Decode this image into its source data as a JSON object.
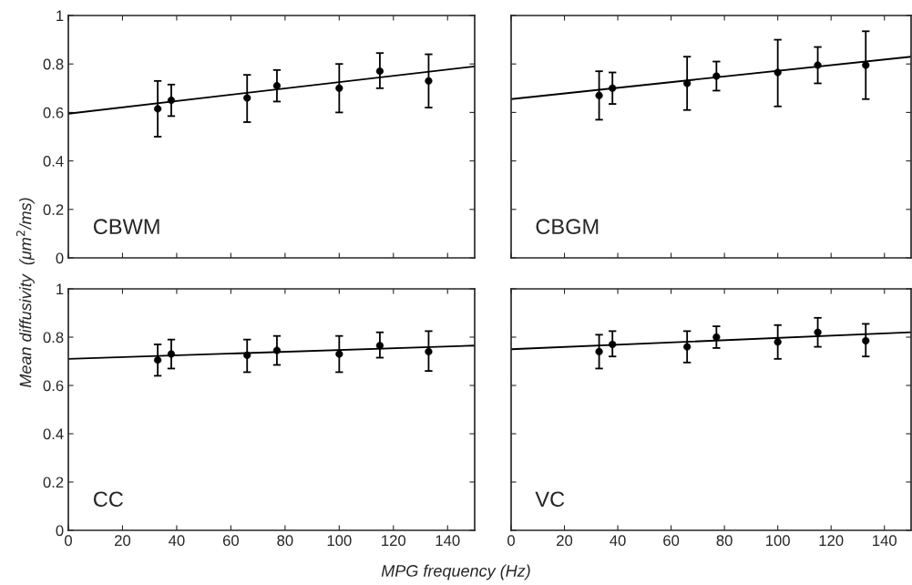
{
  "chart_data": [
    {
      "type": "scatter",
      "xlim": [
        0,
        150
      ],
      "xticks": [
        0,
        20,
        40,
        60,
        80,
        100,
        120,
        140
      ],
      "ylim": [
        0,
        1
      ],
      "yticks": [
        0,
        0.2,
        0.4,
        0.6,
        0.8,
        1
      ],
      "tick_labels": "y",
      "ylabel": "Mean diffusivity  (μm$^{2}$/ms)",
      "annotations": [
        "CBWM"
      ],
      "series": [
        {
          "x": [
            33,
            38,
            66,
            77,
            100,
            115,
            133
          ],
          "values": [
            0.615,
            0.65,
            0.66,
            0.71,
            0.7,
            0.77,
            0.73
          ],
          "errors": [
            [
              0.5,
              0.73
            ],
            [
              0.585,
              0.715
            ],
            [
              0.56,
              0.755
            ],
            [
              0.645,
              0.775
            ],
            [
              0.6,
              0.8
            ],
            [
              0.7,
              0.845
            ],
            [
              0.62,
              0.84
            ]
          ],
          "color": "#000000",
          "marker": "circle"
        },
        {
          "type": "line",
          "x": [
            0,
            150
          ],
          "values": [
            0.595,
            0.79
          ],
          "color": "#000000"
        }
      ]
    },
    {
      "type": "scatter",
      "xlim": [
        0,
        150
      ],
      "xticks": [
        0,
        20,
        40,
        60,
        80,
        100,
        120,
        140
      ],
      "ylim": [
        0,
        1
      ],
      "yticks": [
        0,
        0.2,
        0.4,
        0.6,
        0.8,
        1
      ],
      "tick_labels": false,
      "annotations": [
        "CBGM"
      ],
      "series": [
        {
          "x": [
            33,
            38,
            66,
            77,
            100,
            115,
            133
          ],
          "values": [
            0.67,
            0.7,
            0.72,
            0.75,
            0.765,
            0.795,
            0.795
          ],
          "errors": [
            [
              0.57,
              0.77
            ],
            [
              0.635,
              0.765
            ],
            [
              0.61,
              0.83
            ],
            [
              0.69,
              0.81
            ],
            [
              0.625,
              0.9
            ],
            [
              0.72,
              0.87
            ],
            [
              0.655,
              0.935
            ]
          ],
          "color": "#000000",
          "marker": "circle"
        },
        {
          "type": "line",
          "x": [
            0,
            150
          ],
          "values": [
            0.655,
            0.83
          ],
          "color": "#000000"
        }
      ]
    },
    {
      "type": "scatter",
      "xlim": [
        0,
        150
      ],
      "xticks": [
        0,
        20,
        40,
        60,
        80,
        100,
        120,
        140
      ],
      "ylim": [
        0,
        1
      ],
      "yticks": [
        0,
        0.2,
        0.4,
        0.6,
        0.8,
        1
      ],
      "xlabel": "MPG frequency (Hz)",
      "annotations": [
        "CC"
      ],
      "series": [
        {
          "x": [
            33,
            38,
            66,
            77,
            100,
            115,
            133
          ],
          "values": [
            0.705,
            0.73,
            0.725,
            0.745,
            0.73,
            0.765,
            0.74
          ],
          "errors": [
            [
              0.64,
              0.77
            ],
            [
              0.67,
              0.79
            ],
            [
              0.655,
              0.79
            ],
            [
              0.685,
              0.805
            ],
            [
              0.655,
              0.805
            ],
            [
              0.715,
              0.82
            ],
            [
              0.66,
              0.825
            ]
          ],
          "color": "#000000",
          "marker": "circle"
        },
        {
          "type": "line",
          "x": [
            0,
            150
          ],
          "values": [
            0.71,
            0.765
          ],
          "color": "#000000"
        }
      ]
    },
    {
      "type": "scatter",
      "xlim": [
        0,
        150
      ],
      "xticks": [
        0,
        20,
        40,
        60,
        80,
        100,
        120,
        140
      ],
      "ylim": [
        0,
        1
      ],
      "yticks": [
        0,
        0.2,
        0.4,
        0.6,
        0.8,
        1
      ],
      "tick_labels": "x",
      "annotations": [
        "VC"
      ],
      "series": [
        {
          "x": [
            33,
            38,
            66,
            77,
            100,
            115,
            133
          ],
          "values": [
            0.74,
            0.77,
            0.76,
            0.8,
            0.78,
            0.82,
            0.785
          ],
          "errors": [
            [
              0.67,
              0.81
            ],
            [
              0.72,
              0.825
            ],
            [
              0.695,
              0.825
            ],
            [
              0.755,
              0.845
            ],
            [
              0.71,
              0.85
            ],
            [
              0.76,
              0.88
            ],
            [
              0.72,
              0.855
            ]
          ],
          "color": "#000000",
          "marker": "circle"
        },
        {
          "type": "line",
          "x": [
            0,
            150
          ],
          "values": [
            0.75,
            0.82
          ],
          "color": "#000000"
        }
      ]
    }
  ]
}
